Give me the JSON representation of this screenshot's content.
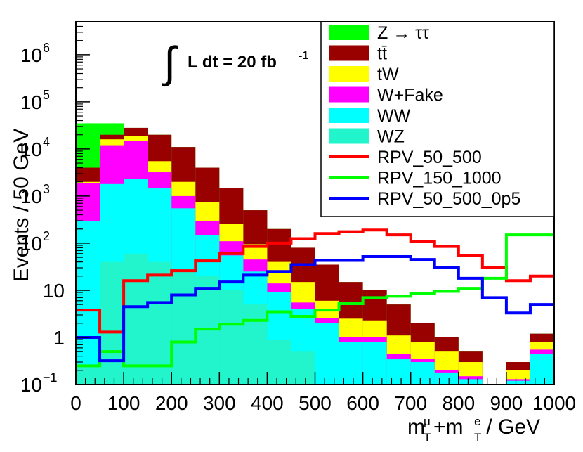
{
  "chart_data": {
    "type": "histogram",
    "title": "",
    "lumi_label": {
      "integral": "∫",
      "text": "L dt = 20 fb",
      "sup": "-1"
    },
    "ylabel": "Events / 50 GeV",
    "xlabel": {
      "m": "m",
      "mu": "μ",
      "plus": "+m",
      "e": "e",
      "T": "T",
      "suffix": " / GeV"
    },
    "xlim": [
      0,
      1000
    ],
    "ylim": [
      0.1,
      5000000
    ],
    "yscale": "log",
    "bin_edges": [
      0,
      50,
      100,
      150,
      200,
      250,
      300,
      350,
      400,
      450,
      500,
      550,
      600,
      650,
      700,
      750,
      800,
      850,
      900,
      950,
      1000
    ],
    "x_ticks": [
      {
        "value": 0,
        "label": "0"
      },
      {
        "value": 100,
        "label": "100"
      },
      {
        "value": 200,
        "label": "200"
      },
      {
        "value": 300,
        "label": "300"
      },
      {
        "value": 400,
        "label": "400"
      },
      {
        "value": 500,
        "label": "500"
      },
      {
        "value": 600,
        "label": "600"
      },
      {
        "value": 700,
        "label": "700"
      },
      {
        "value": 800,
        "label": "800"
      },
      {
        "value": 900,
        "label": "900"
      },
      {
        "value": 1000,
        "label": "1000"
      }
    ],
    "y_ticks": [
      {
        "value": 0.1,
        "base": "10",
        "exp": "−1"
      },
      {
        "value": 1,
        "base": "1",
        "exp": ""
      },
      {
        "value": 10,
        "base": "10",
        "exp": ""
      },
      {
        "value": 100,
        "base": "10",
        "exp": "2"
      },
      {
        "value": 1000,
        "base": "10",
        "exp": "3"
      },
      {
        "value": 10000,
        "base": "10",
        "exp": "4"
      },
      {
        "value": 100000,
        "base": "10",
        "exp": "5"
      },
      {
        "value": 1000000,
        "base": "10",
        "exp": "6"
      }
    ],
    "stack_cumulative": [
      {
        "name": "WZ",
        "color": "#22f5cc",
        "legend": "WZ",
        "values": [
          0.25,
          40,
          60,
          40,
          25,
          20,
          10,
          5,
          0.9,
          0.5,
          0.1,
          0.1,
          0.1,
          0.1,
          0.1,
          0.1,
          0.1,
          0.1,
          0.1,
          0.1
        ]
      },
      {
        "name": "WW",
        "color": "#00ffff",
        "legend": "WW",
        "values": [
          300,
          1800,
          2300,
          1500,
          550,
          150,
          55,
          25,
          9,
          4,
          2,
          0.8,
          0.8,
          0.35,
          0.3,
          0.18,
          0.13,
          0.1,
          0.12,
          0.45
        ]
      },
      {
        "name": "W+Fake",
        "color": "#ff00ff",
        "legend": "W+Fake",
        "values": [
          1900,
          12000,
          15000,
          3200,
          1000,
          300,
          110,
          45,
          14,
          5.5,
          2.6,
          1,
          1,
          0.45,
          0.35,
          0.2,
          0.15,
          0.1,
          0.13,
          0.55
        ]
      },
      {
        "name": "tW",
        "color": "#ffff00",
        "legend": "tW",
        "values": [
          2000,
          16000,
          19000,
          5500,
          2000,
          750,
          260,
          95,
          40,
          15,
          6,
          2.5,
          2.3,
          1.1,
          0.8,
          0.5,
          0.3,
          0.1,
          0.2,
          0.8
        ]
      },
      {
        "name": "ttbar",
        "color": "#990000",
        "legend": "tt̄",
        "values": [
          4000,
          20000,
          28000,
          20000,
          11000,
          4000,
          1500,
          500,
          200,
          80,
          35,
          15,
          10,
          5,
          2,
          1,
          0.5,
          0.1,
          0.3,
          1.2
        ]
      },
      {
        "name": "Ztautau",
        "color": "#00ff00",
        "legend": "Z → ττ",
        "values": [
          35000,
          35000,
          28000,
          20000,
          11000,
          4000,
          1500,
          500,
          200,
          80,
          35,
          15,
          10,
          5,
          2,
          1,
          0.5,
          0.1,
          0.3,
          1.2
        ]
      }
    ],
    "stack_draw_order": [
      "Ztautau",
      "ttbar",
      "tW",
      "W+Fake",
      "WW",
      "WZ"
    ],
    "legend_order": [
      "Ztautau",
      "ttbar",
      "tW",
      "W+Fake",
      "WW",
      "WZ",
      "RPV_50_500",
      "RPV_150_1000",
      "RPV_50_500_0p5"
    ],
    "series": [
      {
        "name": "RPV_50_500",
        "color": "#ff0000",
        "legend": "RPV_50_500",
        "values": [
          3.8,
          1.3,
          16,
          21,
          26,
          42,
          60,
          85,
          100,
          125,
          160,
          175,
          190,
          150,
          110,
          85,
          55,
          30,
          16,
          20
        ]
      },
      {
        "name": "RPV_150_1000",
        "color": "#00ff00",
        "legend": "RPV_150_1000",
        "values": [
          0.25,
          0.5,
          0.25,
          0.25,
          0.8,
          1.5,
          1.9,
          2.3,
          3.5,
          2.8,
          3.8,
          5.2,
          7,
          7.5,
          8.5,
          9.5,
          11,
          18,
          150,
          150
        ]
      },
      {
        "name": "RPV_50_500_0p5",
        "color": "#0000ff",
        "legend": "RPV_50_500_0p5",
        "values": [
          1,
          0.32,
          4.5,
          5.5,
          8,
          11,
          15,
          21,
          25,
          35,
          43,
          43,
          52,
          52,
          45,
          30,
          18,
          7,
          3.3,
          5
        ]
      }
    ]
  }
}
